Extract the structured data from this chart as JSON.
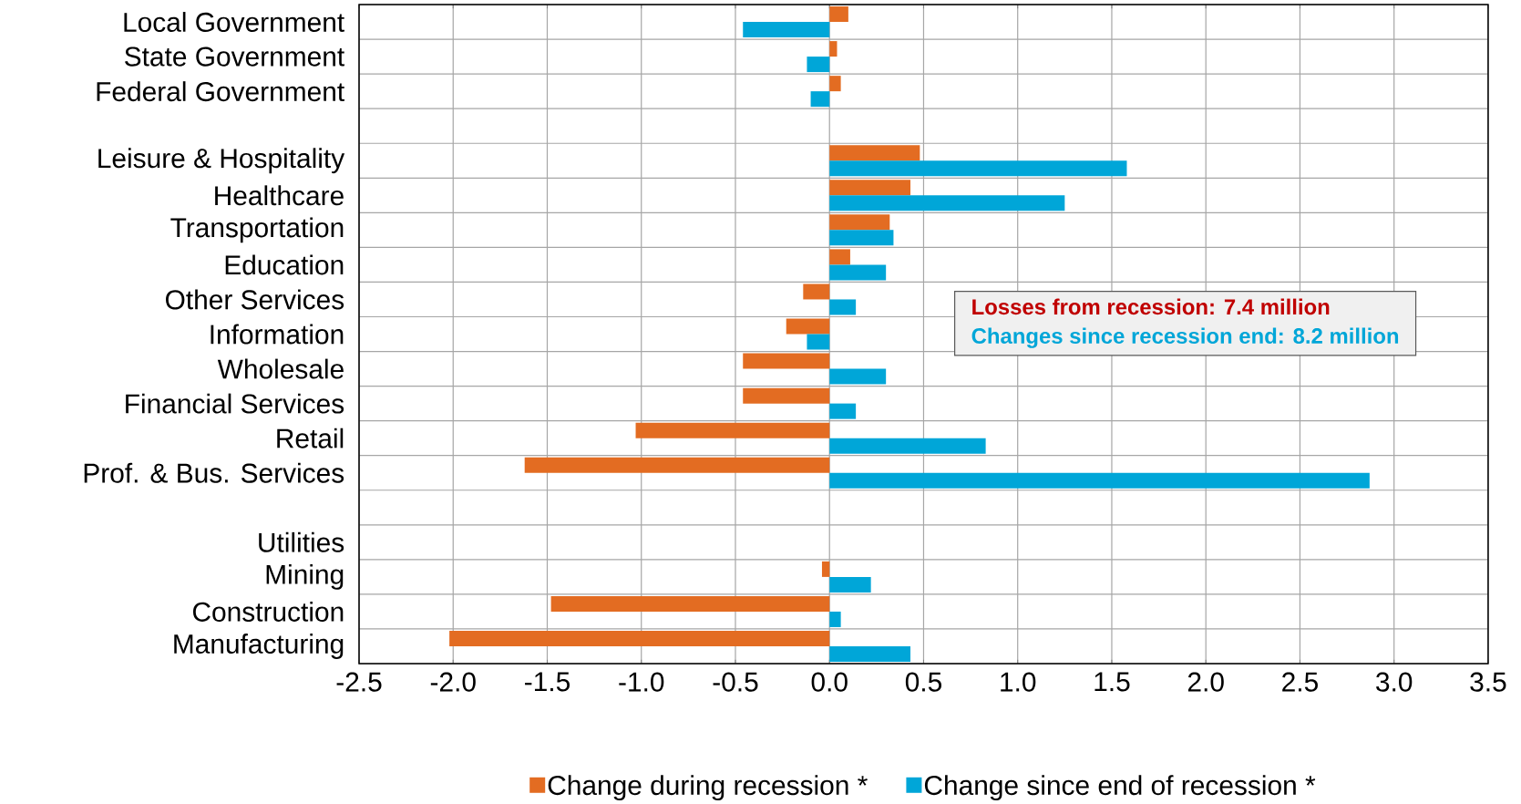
{
  "chart_data": {
    "type": "bar",
    "orientation": "horizontal",
    "categories": [
      "Local Government",
      "State Government",
      "Federal Government",
      null,
      "Leisure & Hospitality",
      "Healthcare",
      "Transportation",
      "Education",
      "Other Services",
      "Information",
      "Wholesale",
      "Financial Services",
      "Retail",
      "Prof. & Bus. Services",
      null,
      "Utilities",
      "Mining",
      "Construction",
      "Manufacturing"
    ],
    "series": [
      {
        "name": "Change during recession *",
        "color": "#e36c22",
        "values": [
          0.1,
          0.04,
          0.06,
          null,
          0.48,
          0.43,
          0.32,
          0.11,
          -0.14,
          -0.23,
          -0.46,
          -0.46,
          -1.03,
          -1.62,
          null,
          0,
          -0.04,
          -1.48,
          -2.02
        ]
      },
      {
        "name": "Change since end of recession *",
        "color": "#00a6d8",
        "values": [
          -0.46,
          -0.12,
          -0.1,
          null,
          1.58,
          1.25,
          0.34,
          0.3,
          0.14,
          -0.12,
          0.3,
          0.14,
          0.83,
          2.87,
          null,
          0,
          0.22,
          0.06,
          0.43
        ]
      }
    ],
    "xlim": [
      -2.5,
      3.5
    ],
    "xticks": [
      {
        "value": -2.5,
        "label": "-2.5"
      },
      {
        "value": -2.0,
        "label": "-2.0"
      },
      {
        "value": -1.5,
        "label": "-1.5"
      },
      {
        "value": -1.0,
        "label": "-1.0"
      },
      {
        "value": -0.5,
        "label": "-0.5"
      },
      {
        "value": 0.0,
        "label": "0.0"
      },
      {
        "value": 0.5,
        "label": "0.5"
      },
      {
        "value": 1.0,
        "label": "1.0"
      },
      {
        "value": 1.5,
        "label": "1.5"
      },
      {
        "value": 2.0,
        "label": "2.0"
      },
      {
        "value": 2.5,
        "label": "2.5"
      },
      {
        "value": 3.0,
        "label": "3.0"
      },
      {
        "value": 3.5,
        "label": "3.5"
      }
    ],
    "annotations": [
      "Losses from recession:  7.4 million",
      "Changes since recession end:  8.2 million"
    ],
    "grid": true,
    "legend": "bottom"
  }
}
